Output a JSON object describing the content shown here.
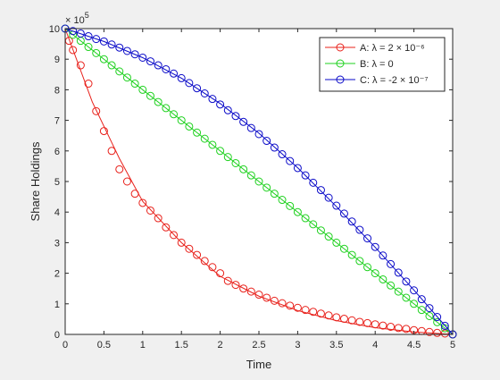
{
  "chart_data": {
    "type": "line",
    "title": "",
    "xlabel": "Time",
    "ylabel": "Share Holdings",
    "y_exponent_label": "× 10",
    "y_exponent_power": "5",
    "xlim": [
      0,
      5
    ],
    "ylim": [
      0,
      10
    ],
    "x_ticks": [
      0,
      0.5,
      1,
      1.5,
      2,
      2.5,
      3,
      3.5,
      4,
      4.5,
      5
    ],
    "x_tick_labels": [
      "0",
      "0.5",
      "1",
      "1.5",
      "2",
      "2.5",
      "3",
      "3.5",
      "4",
      "4.5",
      "5"
    ],
    "y_ticks": [
      0,
      1,
      2,
      3,
      4,
      5,
      6,
      7,
      8,
      9,
      10
    ],
    "y_tick_labels": [
      "0",
      "1",
      "2",
      "3",
      "4",
      "5",
      "6",
      "7",
      "8",
      "9",
      "10"
    ],
    "grid": false,
    "legend_position": "top-right",
    "series": [
      {
        "name": "A: λ = 2 × 10⁻⁶",
        "color": "#e8201a",
        "marker": "circle",
        "line": {
          "x": [
            0,
            0.35,
            0.7,
            1.0,
            1.5,
            2.0,
            2.5,
            3.0,
            3.5,
            4.0,
            4.5,
            5.0
          ],
          "y": [
            10,
            7.6,
            5.75,
            4.35,
            3.0,
            1.9,
            1.25,
            0.78,
            0.45,
            0.22,
            0.08,
            0
          ]
        },
        "markers": {
          "x": [
            0.05,
            0.1,
            0.2,
            0.3,
            0.4,
            0.5,
            0.6,
            0.7,
            0.8,
            0.9,
            1.0,
            1.1,
            1.2,
            1.3,
            1.4,
            1.5,
            1.6,
            1.7,
            1.8,
            1.9,
            2.0,
            2.1,
            2.2,
            2.3,
            2.4,
            2.5,
            2.6,
            2.7,
            2.8,
            2.9,
            3.0,
            3.1,
            3.2,
            3.3,
            3.4,
            3.5,
            3.6,
            3.7,
            3.8,
            3.9,
            4.0,
            4.1,
            4.2,
            4.3,
            4.4,
            4.5,
            4.6,
            4.7,
            4.8,
            4.9,
            5.0
          ],
          "y": [
            9.6,
            9.3,
            8.8,
            8.2,
            7.3,
            6.65,
            6.0,
            5.4,
            5.0,
            4.6,
            4.3,
            4.05,
            3.8,
            3.5,
            3.25,
            3.0,
            2.8,
            2.6,
            2.4,
            2.2,
            2.0,
            1.75,
            1.62,
            1.5,
            1.4,
            1.3,
            1.2,
            1.1,
            1.02,
            0.94,
            0.87,
            0.8,
            0.74,
            0.68,
            0.62,
            0.56,
            0.51,
            0.46,
            0.41,
            0.37,
            0.33,
            0.29,
            0.25,
            0.21,
            0.18,
            0.14,
            0.11,
            0.08,
            0.05,
            0.03,
            0.0
          ]
        }
      },
      {
        "name": "B: λ = 0",
        "color": "#1fd11f",
        "marker": "circle",
        "line": {
          "x": [
            0,
            5
          ],
          "y": [
            10,
            0
          ]
        },
        "markers": {
          "x": [
            0,
            0.1,
            0.2,
            0.3,
            0.4,
            0.5,
            0.6,
            0.7,
            0.8,
            0.9,
            1.0,
            1.1,
            1.2,
            1.3,
            1.4,
            1.5,
            1.6,
            1.7,
            1.8,
            1.9,
            2.0,
            2.1,
            2.2,
            2.3,
            2.4,
            2.5,
            2.6,
            2.7,
            2.8,
            2.9,
            3.0,
            3.1,
            3.2,
            3.3,
            3.4,
            3.5,
            3.6,
            3.7,
            3.8,
            3.9,
            4.0,
            4.1,
            4.2,
            4.3,
            4.4,
            4.5,
            4.6,
            4.7,
            4.8,
            4.9,
            5.0
          ],
          "y": [
            10,
            9.8,
            9.6,
            9.4,
            9.2,
            9.0,
            8.8,
            8.6,
            8.4,
            8.2,
            8.0,
            7.8,
            7.6,
            7.4,
            7.2,
            7.0,
            6.8,
            6.6,
            6.4,
            6.2,
            6.0,
            5.8,
            5.6,
            5.4,
            5.2,
            5.0,
            4.8,
            4.6,
            4.4,
            4.2,
            4.0,
            3.8,
            3.6,
            3.4,
            3.2,
            3.0,
            2.8,
            2.6,
            2.4,
            2.2,
            2.0,
            1.8,
            1.6,
            1.4,
            1.2,
            1.0,
            0.8,
            0.6,
            0.4,
            0.2,
            0.0
          ]
        }
      },
      {
        "name": "C: λ = -2 × 10⁻⁷",
        "color": "#0a0ac8",
        "marker": "circle",
        "line": {
          "x": [
            0,
            0.5,
            1.0,
            1.5,
            2.0,
            2.5,
            3.0,
            3.5,
            4.0,
            4.5,
            5.0
          ],
          "y": [
            10,
            9.58,
            9.05,
            8.38,
            7.55,
            6.58,
            5.45,
            4.18,
            2.85,
            1.45,
            0
          ]
        },
        "markers": {
          "x": [
            0,
            0.1,
            0.2,
            0.3,
            0.4,
            0.5,
            0.6,
            0.7,
            0.8,
            0.9,
            1.0,
            1.1,
            1.2,
            1.3,
            1.4,
            1.5,
            1.6,
            1.7,
            1.8,
            1.9,
            2.0,
            2.1,
            2.2,
            2.3,
            2.4,
            2.5,
            2.6,
            2.7,
            2.8,
            2.9,
            3.0,
            3.1,
            3.2,
            3.3,
            3.4,
            3.5,
            3.6,
            3.7,
            3.8,
            3.9,
            4.0,
            4.1,
            4.2,
            4.3,
            4.4,
            4.5,
            4.6,
            4.7,
            4.8,
            4.9,
            5.0
          ],
          "y": [
            10,
            9.92,
            9.84,
            9.75,
            9.66,
            9.58,
            9.48,
            9.38,
            9.27,
            9.16,
            9.05,
            8.93,
            8.8,
            8.67,
            8.53,
            8.38,
            8.22,
            8.05,
            7.88,
            7.7,
            7.52,
            7.33,
            7.14,
            6.95,
            6.75,
            6.55,
            6.33,
            6.11,
            5.89,
            5.67,
            5.44,
            5.2,
            4.96,
            4.72,
            4.47,
            4.21,
            3.95,
            3.69,
            3.42,
            3.14,
            2.86,
            2.58,
            2.3,
            2.02,
            1.73,
            1.44,
            1.15,
            0.86,
            0.57,
            0.28,
            0.0
          ]
        }
      }
    ]
  }
}
